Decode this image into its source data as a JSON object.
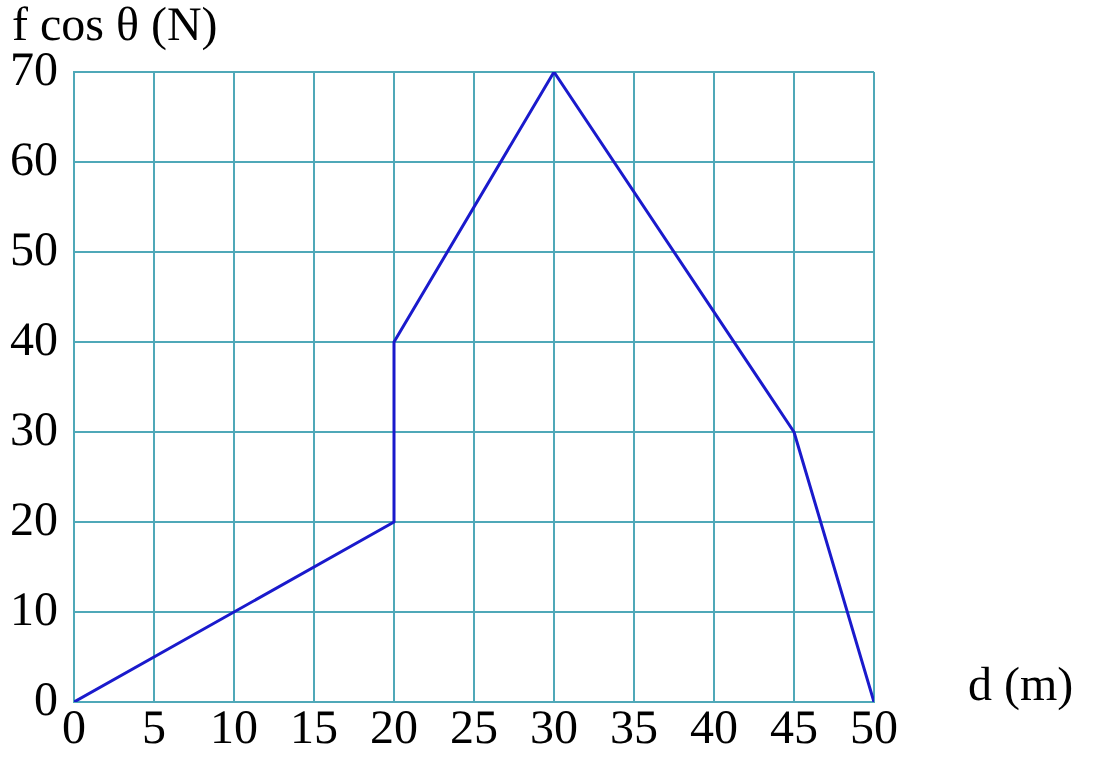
{
  "chart_data": {
    "type": "line",
    "xlabel": "d (m)",
    "ylabel": "f cos θ  (N)",
    "x": [
      0,
      20,
      20,
      30,
      45,
      50
    ],
    "series": [
      {
        "color": "#1a1acc",
        "values": [
          0,
          20,
          40,
          70,
          30,
          0
        ]
      }
    ],
    "xlim": [
      0,
      50
    ],
    "xticks": [
      0,
      5,
      10,
      15,
      20,
      25,
      30,
      35,
      40,
      45,
      50
    ],
    "ylim": [
      0,
      70
    ],
    "yticks": [
      0,
      10,
      20,
      30,
      40,
      50,
      60,
      70
    ],
    "grid": true,
    "legend": false,
    "marker": "none"
  }
}
